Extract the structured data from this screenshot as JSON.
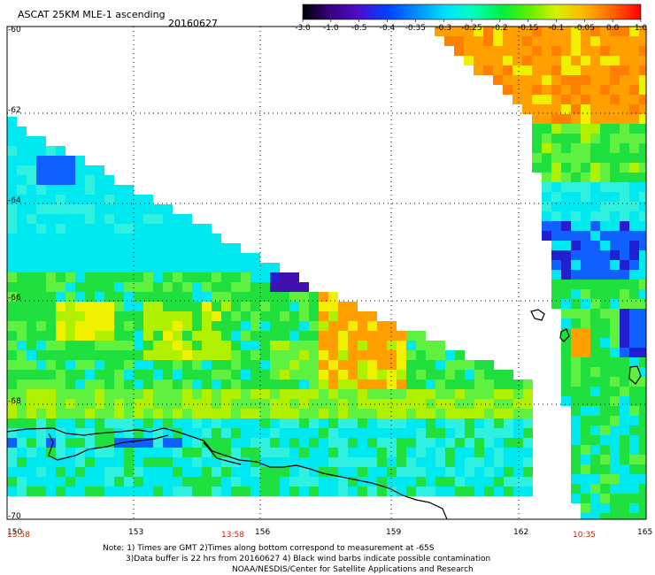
{
  "header": {
    "title": "ASCAT 25KM MLE-1 ascending",
    "date": "20160627"
  },
  "colorbar": {
    "labels": [
      "-3.0",
      "-1.0",
      "-0.5",
      "-0.4",
      "-0.35",
      "-0.3",
      "-0.25",
      "-0.2",
      "-0.15",
      "-0.1",
      "-0.05",
      "0.0",
      "1.0"
    ],
    "colors": [
      "#000000",
      "#2a0060",
      "#4a00b0",
      "#1a30e0",
      "#0070ff",
      "#00b0ff",
      "#00e8ff",
      "#00ffb0",
      "#20f020",
      "#90f000",
      "#f0f000",
      "#ffa000",
      "#ff4000",
      "#ff0000"
    ]
  },
  "axes": {
    "lon_ticks": [
      "150",
      "153",
      "156",
      "159",
      "162",
      "165"
    ],
    "lat_ticks": [
      "-60",
      "-62",
      "-64",
      "-66",
      "-68",
      "-70"
    ]
  },
  "time_labels": [
    "13:58",
    "13:58",
    "10:35"
  ],
  "notes": [
    "Note: 1) Times are GMT 2)Times along bottom correspond to measurement at -65S",
    "3)Data buffer is 22 hrs from 20160627 4) Black wind barbs indicate possible contamination",
    "NOAA/NESDIS/Center for Satellite Applications and Research"
  ],
  "palette": {
    "time_color": "#cc2200",
    "grid_color": "#000000"
  }
}
